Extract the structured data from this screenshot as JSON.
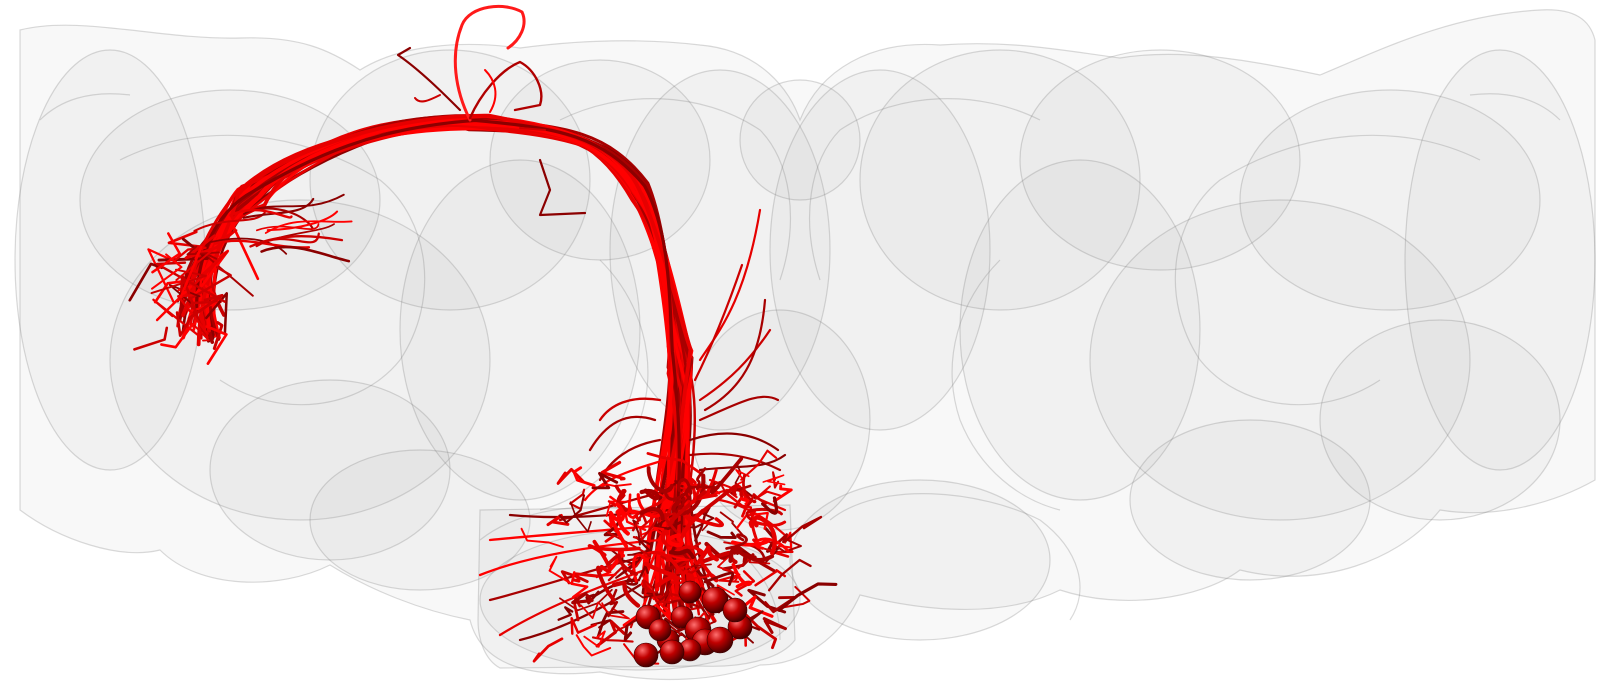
{
  "scene": {
    "subject": "neuron-tracts-in-brain-mesh",
    "background_color": "#ffffff",
    "mesh_color": "#9a9a9a",
    "tract_colors": [
      "#ff0000",
      "#e60000",
      "#cc0000",
      "#a80000",
      "#8b0000"
    ],
    "soma_color": "#b30000",
    "soma_count": 14
  }
}
